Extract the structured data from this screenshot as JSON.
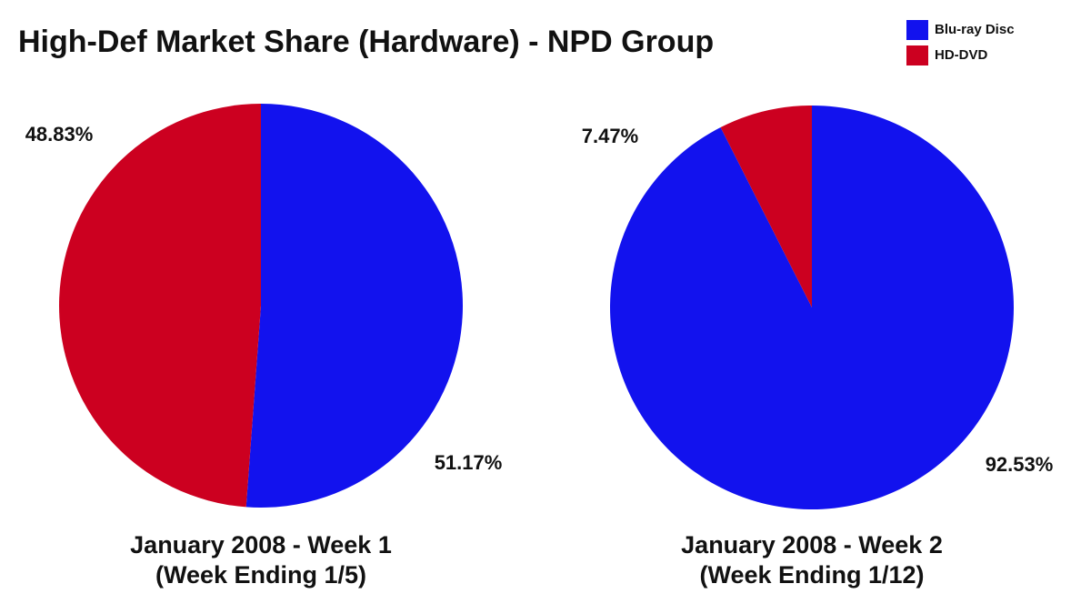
{
  "title": "High-Def Market Share (Hardware) - NPD Group",
  "legend_corner": "top-right",
  "chart_data": [
    {
      "type": "pie",
      "caption": [
        "January 2008 - Week 1",
        "(Week Ending 1/5)"
      ],
      "categories": [
        "Blu-ray Disc",
        "HD-DVD"
      ],
      "values": [
        51.17,
        48.83
      ],
      "value_labels": [
        "51.17%",
        "48.83%"
      ],
      "colors": [
        "#1212ee",
        "#cc0020"
      ]
    },
    {
      "type": "pie",
      "caption": [
        "January 2008 - Week 2",
        "(Week Ending 1/12)"
      ],
      "categories": [
        "Blu-ray Disc",
        "HD-DVD"
      ],
      "values": [
        92.53,
        7.47
      ],
      "value_labels": [
        "92.53%",
        "7.47%"
      ],
      "colors": [
        "#1212ee",
        "#cc0020"
      ]
    }
  ]
}
